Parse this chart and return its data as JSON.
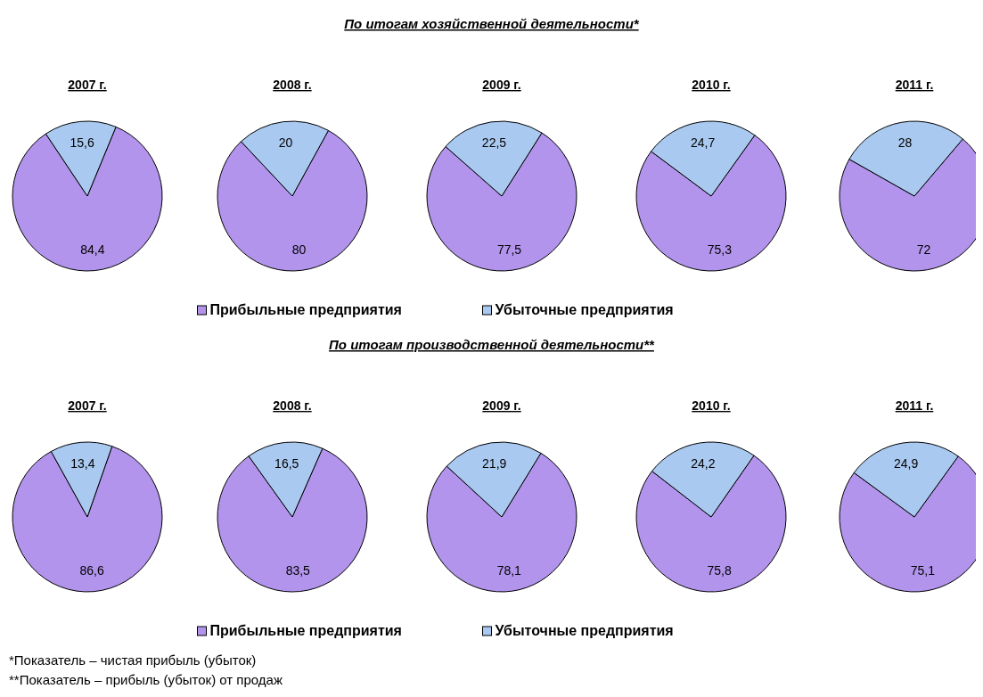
{
  "chart_data": [
    {
      "type": "pie",
      "title": "2007 г.",
      "categories": [
        null,
        null
      ],
      "values": [
        84.4,
        15.6
      ],
      "colors": [
        "#b294ec",
        "#a9c9f0"
      ],
      "value_labels": [
        "84,4",
        "15,6"
      ]
    },
    {
      "type": "pie",
      "title": "2008 г.",
      "categories": [
        null,
        null
      ],
      "values": [
        80,
        20
      ],
      "colors": [
        "#b294ec",
        "#a9c9f0"
      ],
      "data_labels": true
    },
    {
      "type": "pie",
      "title": "2009 г.",
      "categories": [
        "Прибыльные предприятия",
        "Убыточные предприятия"
      ],
      "values": [
        77.5,
        22.5
      ],
      "colors": [
        "#b294ec",
        "#a9c9f0"
      ],
      "value_labels": [
        "77,5",
        "22,5"
      ],
      "legend": "bottom",
      "annotations": [
        "По итогам хозяйственной деятельности*"
      ]
    },
    {
      "type": "pie",
      "title": "2010 г.",
      "categories": [
        null,
        null
      ],
      "values": [
        75.3,
        24.7
      ],
      "colors": [
        "#b294ec",
        "#a9c9f0"
      ],
      "value_labels": [
        "75,3",
        "24,7"
      ]
    },
    {
      "type": "pie",
      "title": "2011 г.",
      "categories": [
        null,
        null
      ],
      "values": [
        72,
        28
      ],
      "colors": [
        "#b294ec",
        "#a9c9f0"
      ],
      "data_labels": true
    },
    {
      "type": "pie",
      "title": "2007 г.",
      "categories": [
        null,
        null
      ],
      "values": [
        86.6,
        13.4
      ],
      "colors": [
        "#b294ec",
        "#a9c9f0"
      ],
      "value_labels": [
        "86,6",
        "13,4"
      ]
    },
    {
      "type": "pie",
      "title": "2008 г.",
      "categories": [
        null,
        null
      ],
      "values": [
        83.5,
        16.5
      ],
      "colors": [
        "#b294ec",
        "#a9c9f0"
      ],
      "value_labels": [
        "83,5",
        "16,5"
      ]
    },
    {
      "type": "pie",
      "title": "2009 г.",
      "categories": [
        "Прибыльные предприятия",
        "Убыточные предприятия"
      ],
      "values": [
        78.1,
        21.9
      ],
      "colors": [
        "#b294ec",
        "#a9c9f0"
      ],
      "value_labels": [
        "78,1",
        "21,9"
      ],
      "legend": "bottom",
      "annotations": [
        "По итогам производственной деятельности**",
        "*Показатель – чистая прибыль (убыток)",
        "**Показатель – прибыль (убыток) от продаж"
      ]
    },
    {
      "type": "pie",
      "title": "2010 г.",
      "categories": [
        null,
        null
      ],
      "values": [
        75.8,
        24.2
      ],
      "colors": [
        "#b294ec",
        "#a9c9f0"
      ],
      "value_labels": [
        "75,8",
        "24,2"
      ]
    },
    {
      "type": "pie",
      "title": "2011 г.",
      "categories": [
        null,
        null
      ],
      "values": [
        75.1,
        24.9
      ],
      "colors": [
        "#b294ec",
        "#a9c9f0"
      ],
      "value_labels": [
        "75,1",
        "24,9"
      ]
    }
  ]
}
